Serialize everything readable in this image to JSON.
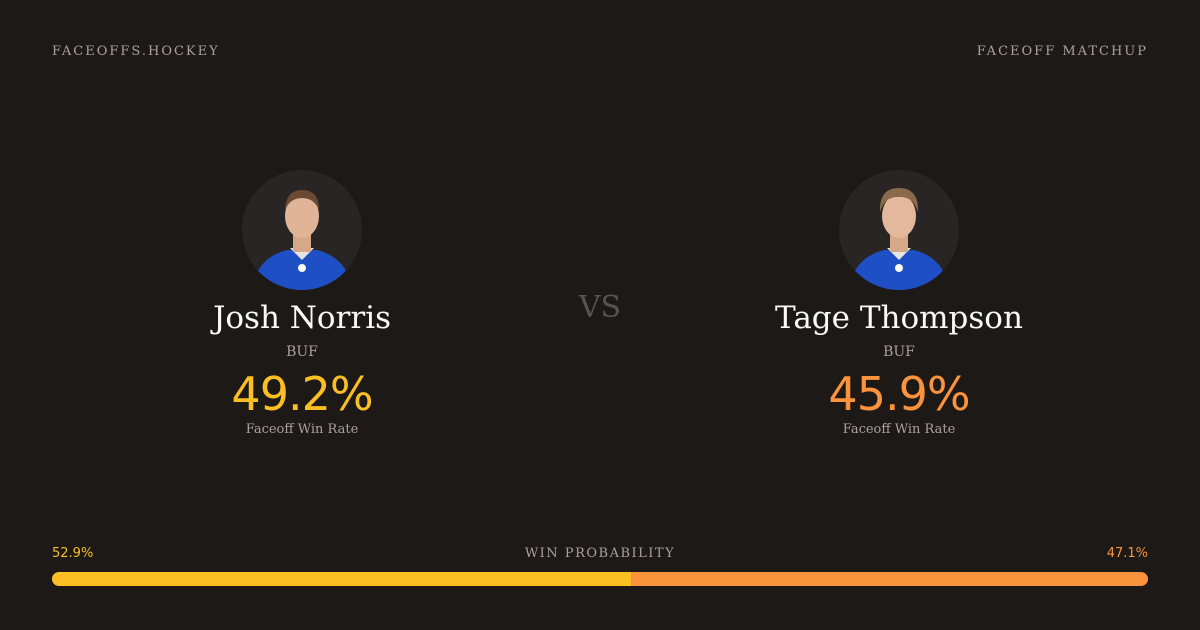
{
  "header": {
    "site": "FACEOFFS.HOCKEY",
    "label": "FACEOFF MATCHUP"
  },
  "players": [
    {
      "name": "Josh Norris",
      "team": "BUF",
      "rate": "49.2%",
      "rate_label": "Faceoff Win Rate",
      "color": "#fbbf24"
    },
    {
      "name": "Tage Thompson",
      "team": "BUF",
      "rate": "45.9%",
      "rate_label": "Faceoff Win Rate",
      "color": "#fb923c"
    }
  ],
  "vs": "VS",
  "win_probability": {
    "label": "WIN PROBABILITY",
    "values": [
      52.9,
      47.1
    ],
    "value_labels": [
      "52.9%",
      "47.1%"
    ],
    "colors": [
      "#fbbf24",
      "#fb923c"
    ]
  }
}
